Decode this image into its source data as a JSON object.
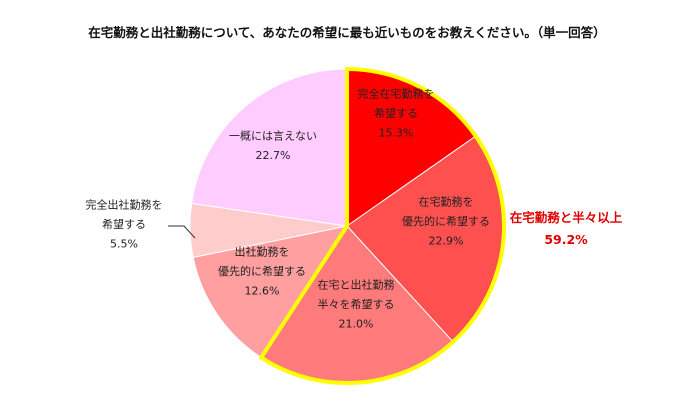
{
  "chart_data": {
    "type": "pie",
    "title": "在宅勤務と出社勤務について、あなたの希望に最も近いものをお教えください。（単一回答）",
    "unit": "%",
    "slices": [
      {
        "lines": [
          "完全在宅勤務を",
          "希望する"
        ],
        "value": 15.3,
        "display": "15.3%",
        "color": "#ff0000",
        "text_color": "#ffffff",
        "highlight": true
      },
      {
        "lines": [
          "在宅勤務を",
          "優先的に希望する"
        ],
        "value": 22.9,
        "display": "22.9%",
        "color": "#ff5050",
        "text_color": "#222222",
        "highlight": true
      },
      {
        "lines": [
          "在宅と出社勤務",
          "半々を希望する"
        ],
        "value": 21.0,
        "display": "21.0%",
        "color": "#ff7a7a",
        "text_color": "#222222",
        "highlight": true
      },
      {
        "lines": [
          "出社勤務を",
          "優先的に希望する"
        ],
        "value": 12.6,
        "display": "12.6%",
        "color": "#ff9f9f",
        "text_color": "#222222",
        "highlight": false
      },
      {
        "lines": [
          "完全出社勤務を",
          "希望する"
        ],
        "value": 5.5,
        "display": "5.5%",
        "color": "#ffcccc",
        "text_color": "#222222",
        "highlight": false,
        "callout": true
      },
      {
        "lines": [
          "一概には言えない"
        ],
        "value": 22.7,
        "display": "22.7%",
        "color": "#ffccff",
        "text_color": "#222222",
        "highlight": false
      }
    ],
    "annotation": {
      "label": "在宅勤務と半々以上",
      "value": "59.2%"
    },
    "highlight_outline_color": "#ffff00"
  }
}
